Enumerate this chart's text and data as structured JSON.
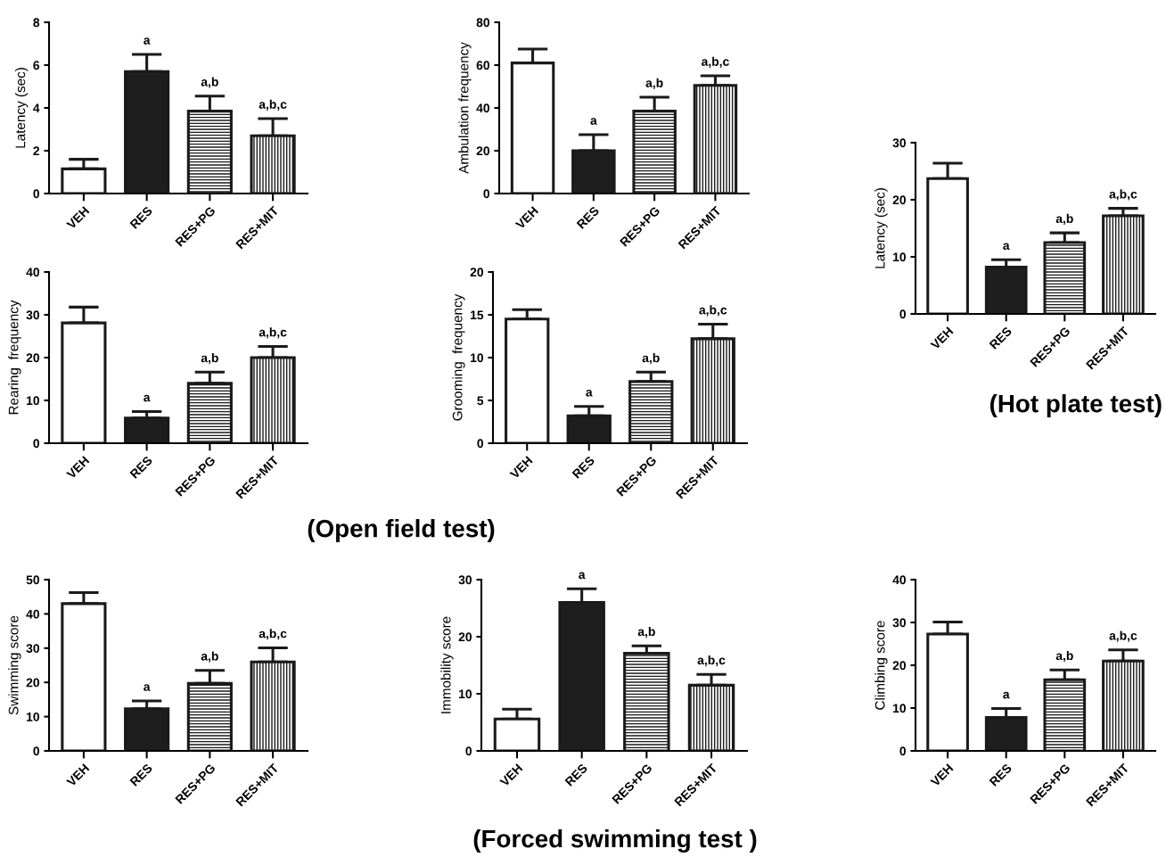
{
  "chart_data": [
    {
      "type": "bar",
      "ylabel": "Latency (sec)",
      "categories": [
        "VEH",
        "RES",
        "RES+PG",
        "RES+MIT"
      ],
      "values": [
        1.15,
        5.7,
        3.85,
        2.7
      ],
      "errors": [
        0.45,
        0.8,
        0.7,
        0.8
      ],
      "colors": [
        "#ffffff",
        "#1e1e1e",
        "#1a1a1a",
        "#1a1a1a"
      ],
      "ylim": [
        0,
        8
      ],
      "yticks": [
        0,
        2,
        4,
        6,
        8
      ],
      "grid": false,
      "legend": false,
      "annotations": [
        {
          "text": "a",
          "x": "RES",
          "y": 6.5
        },
        {
          "text": "a,b",
          "x": "RES+PG",
          "y": 4.55
        },
        {
          "text": "a,b,c",
          "x": "RES+MIT",
          "y": 3.5
        }
      ]
    },
    {
      "type": "bar",
      "ylabel": "Ambulation frequency",
      "categories": [
        "VEH",
        "RES",
        "RES+PG",
        "RES+MIT"
      ],
      "values": [
        61,
        20,
        38.5,
        50.5
      ],
      "errors": [
        6.5,
        7.5,
        6.5,
        4.5
      ],
      "colors": [
        "#ffffff",
        "#1e1e1e",
        "#1a1a1a",
        "#1a1a1a"
      ],
      "ylim": [
        0,
        80
      ],
      "yticks": [
        0,
        20,
        40,
        60,
        80
      ],
      "grid": false,
      "legend": false,
      "annotations": [
        {
          "text": "a",
          "x": "RES",
          "y": 27.5
        },
        {
          "text": "a,b",
          "x": "RES+PG",
          "y": 45
        },
        {
          "text": "a,b,c",
          "x": "RES+MIT",
          "y": 55
        }
      ]
    },
    {
      "type": "bar",
      "ylabel": "Latency (sec)",
      "categories": [
        "VEH",
        "RES",
        "RES+PG",
        "RES+MIT"
      ],
      "values": [
        23.7,
        8.2,
        12.5,
        17.2
      ],
      "errors": [
        2.7,
        1.3,
        1.7,
        1.3
      ],
      "colors": [
        "#ffffff",
        "#1e1e1e",
        "#1a1a1a",
        "#1a1a1a"
      ],
      "ylim": [
        0,
        30
      ],
      "yticks": [
        0,
        10,
        20,
        30
      ],
      "grid": false,
      "legend": false,
      "annotations": [
        {
          "text": "a",
          "x": "RES",
          "y": 9.5
        },
        {
          "text": "a,b",
          "x": "RES+PG",
          "y": 14.2
        },
        {
          "text": "a,b,c",
          "x": "RES+MIT",
          "y": 18.5
        },
        "(Hot plate test)"
      ]
    },
    {
      "type": "bar",
      "ylabel": "Rearing  frequency",
      "categories": [
        "VEH",
        "RES",
        "RES+PG",
        "RES+MIT"
      ],
      "values": [
        28.1,
        5.9,
        14,
        20
      ],
      "errors": [
        3.7,
        1.5,
        2.6,
        2.6
      ],
      "colors": [
        "#ffffff",
        "#1e1e1e",
        "#1a1a1a",
        "#1a1a1a"
      ],
      "ylim": [
        0,
        40
      ],
      "yticks": [
        0,
        10,
        20,
        30,
        40
      ],
      "grid": false,
      "legend": false,
      "annotations": [
        {
          "text": "a",
          "x": "RES",
          "y": 7.4
        },
        {
          "text": "a,b",
          "x": "RES+PG",
          "y": 16.6
        },
        {
          "text": "a,b,c",
          "x": "RES+MIT",
          "y": 22.6
        },
        "(Open field test)"
      ]
    },
    {
      "type": "bar",
      "ylabel": "Grooming  frequency",
      "categories": [
        "VEH",
        "RES",
        "RES+PG",
        "RES+MIT"
      ],
      "values": [
        14.5,
        3.2,
        7.2,
        12.2
      ],
      "errors": [
        1.1,
        1.1,
        1.1,
        1.7
      ],
      "colors": [
        "#ffffff",
        "#1e1e1e",
        "#1a1a1a",
        "#1a1a1a"
      ],
      "ylim": [
        0,
        20
      ],
      "yticks": [
        0,
        5,
        10,
        15,
        20
      ],
      "grid": false,
      "legend": false,
      "annotations": [
        {
          "text": "a",
          "x": "RES",
          "y": 4.3
        },
        {
          "text": "a,b",
          "x": "RES+PG",
          "y": 8.3
        },
        {
          "text": "a,b,c",
          "x": "RES+MIT",
          "y": 13.9
        }
      ]
    },
    {
      "type": "bar",
      "ylabel": "Swimming score",
      "categories": [
        "VEH",
        "RES",
        "RES+PG",
        "RES+MIT"
      ],
      "values": [
        43,
        12.3,
        19.7,
        26
      ],
      "errors": [
        3.2,
        2.3,
        3.8,
        4.1
      ],
      "colors": [
        "#ffffff",
        "#1e1e1e",
        "#1a1a1a",
        "#1a1a1a"
      ],
      "ylim": [
        0,
        50
      ],
      "yticks": [
        0,
        10,
        20,
        30,
        40,
        50
      ],
      "grid": false,
      "legend": false,
      "annotations": [
        {
          "text": "a",
          "x": "RES",
          "y": 14.6
        },
        {
          "text": "a,b",
          "x": "RES+PG",
          "y": 23.5
        },
        {
          "text": "a,b,c",
          "x": "RES+MIT",
          "y": 30.1
        }
      ]
    },
    {
      "type": "bar",
      "ylabel": "Immobility score",
      "categories": [
        "VEH",
        "RES",
        "RES+PG",
        "RES+MIT"
      ],
      "values": [
        5.6,
        26,
        17.1,
        11.5
      ],
      "errors": [
        1.7,
        2.4,
        1.3,
        1.9
      ],
      "colors": [
        "#ffffff",
        "#1e1e1e",
        "#1a1a1a",
        "#1a1a1a"
      ],
      "ylim": [
        0,
        30
      ],
      "yticks": [
        0,
        10,
        20,
        30
      ],
      "grid": false,
      "legend": false,
      "annotations": [
        {
          "text": "a",
          "x": "RES",
          "y": 28.4
        },
        {
          "text": "a,b",
          "x": "RES+PG",
          "y": 18.4
        },
        {
          "text": "a,b,c",
          "x": "RES+MIT",
          "y": 13.4
        },
        "(Forced swimming test )"
      ]
    },
    {
      "type": "bar",
      "ylabel": "Climbing score",
      "categories": [
        "VEH",
        "RES",
        "RES+PG",
        "RES+MIT"
      ],
      "values": [
        27.3,
        7.8,
        16.6,
        21
      ],
      "errors": [
        2.8,
        2.1,
        2.3,
        2.6
      ],
      "colors": [
        "#ffffff",
        "#1e1e1e",
        "#1a1a1a",
        "#1a1a1a"
      ],
      "ylim": [
        0,
        40
      ],
      "yticks": [
        0,
        10,
        20,
        30,
        40
      ],
      "grid": false,
      "legend": false,
      "annotations": [
        {
          "text": "a",
          "x": "RES",
          "y": 9.9
        },
        {
          "text": "a,b",
          "x": "RES+PG",
          "y": 18.9
        },
        {
          "text": "a,b,c",
          "x": "RES+MIT",
          "y": 23.6
        }
      ]
    }
  ]
}
